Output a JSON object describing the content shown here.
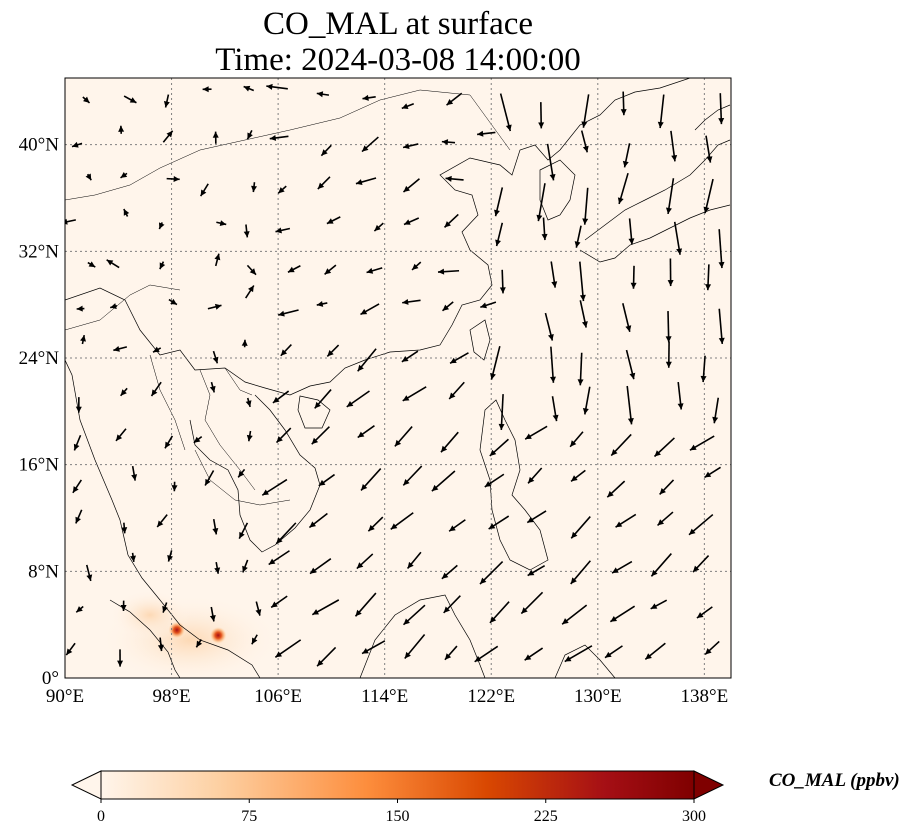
{
  "title_line1": "CO_MAL at surface",
  "title_line2": "Time: 2024-03-08 14:00:00",
  "lon_ticks": [
    {
      "value": 90,
      "label": "90°E"
    },
    {
      "value": 98,
      "label": "98°E"
    },
    {
      "value": 106,
      "label": "106°E"
    },
    {
      "value": 114,
      "label": "114°E"
    },
    {
      "value": 122,
      "label": "122°E"
    },
    {
      "value": 130,
      "label": "130°E"
    },
    {
      "value": 138,
      "label": "138°E"
    }
  ],
  "lat_ticks": [
    {
      "value": 0,
      "label": "0°"
    },
    {
      "value": 8,
      "label": "8°N"
    },
    {
      "value": 16,
      "label": "16°N"
    },
    {
      "value": 24,
      "label": "24°N"
    },
    {
      "value": 32,
      "label": "32°N"
    },
    {
      "value": 40,
      "label": "40°N"
    }
  ],
  "extent": {
    "lon_min": 90,
    "lon_max": 140,
    "lat_min": 0,
    "lat_max": 45
  },
  "colorbar": {
    "label": "CO_MAL (ppbv)",
    "min": 0,
    "max": 300,
    "ticks": [
      {
        "value": 0,
        "label": "0"
      },
      {
        "value": 75,
        "label": "75"
      },
      {
        "value": 150,
        "label": "150"
      },
      {
        "value": 225,
        "label": "225"
      },
      {
        "value": 300,
        "label": "300"
      }
    ],
    "colors": [
      "#fff5eb",
      "#fdd0a2",
      "#fd8d3c",
      "#d94801",
      "#a50f15",
      "#7f0000"
    ],
    "extend": "both"
  },
  "background_color": "#fff5eb",
  "hotspots": [
    {
      "lon": 98.4,
      "lat": 3.6,
      "value": 230
    },
    {
      "lon": 101.5,
      "lat": 3.2,
      "value": 200
    }
  ]
}
